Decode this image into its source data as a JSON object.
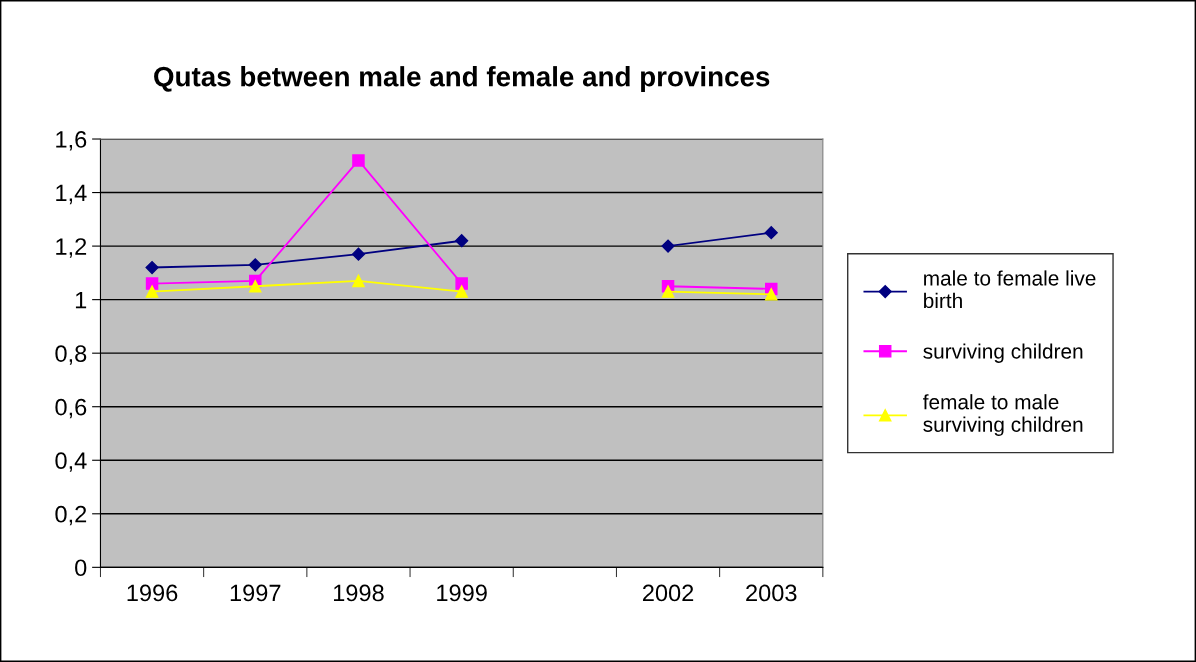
{
  "chart_data": {
    "type": "line",
    "title": "Qutas between male and female and provinces",
    "categories": [
      "1996",
      "1997",
      "1998",
      "1999",
      null,
      "2002",
      "2003"
    ],
    "series": [
      {
        "name": "male to female live birth",
        "color": "#000080",
        "marker": "diamond",
        "values": [
          1.12,
          1.13,
          1.17,
          1.22,
          null,
          1.2,
          1.25
        ]
      },
      {
        "name": "surviving children",
        "color": "#ff00ff",
        "marker": "square",
        "values": [
          1.06,
          1.07,
          1.52,
          1.06,
          null,
          1.05,
          1.04
        ]
      },
      {
        "name": "female to male surviving children",
        "color": "#ffff00",
        "marker": "triangle",
        "values": [
          1.03,
          1.05,
          1.07,
          1.03,
          null,
          1.03,
          1.02
        ]
      }
    ],
    "ylim": [
      0,
      1.6
    ],
    "yticks": [
      0,
      {
        "value": 0.2,
        "label": "0,2"
      },
      {
        "value": 0.4,
        "label": "0,4"
      },
      {
        "value": 0.6,
        "label": "0,6"
      },
      {
        "value": 0.8,
        "label": "0,8"
      },
      1,
      {
        "value": 1.2,
        "label": "1,2"
      },
      {
        "value": 1.4,
        "label": "1,4"
      },
      {
        "value": 1.6,
        "label": "1,6"
      }
    ],
    "grid": "y",
    "legend": "right"
  }
}
